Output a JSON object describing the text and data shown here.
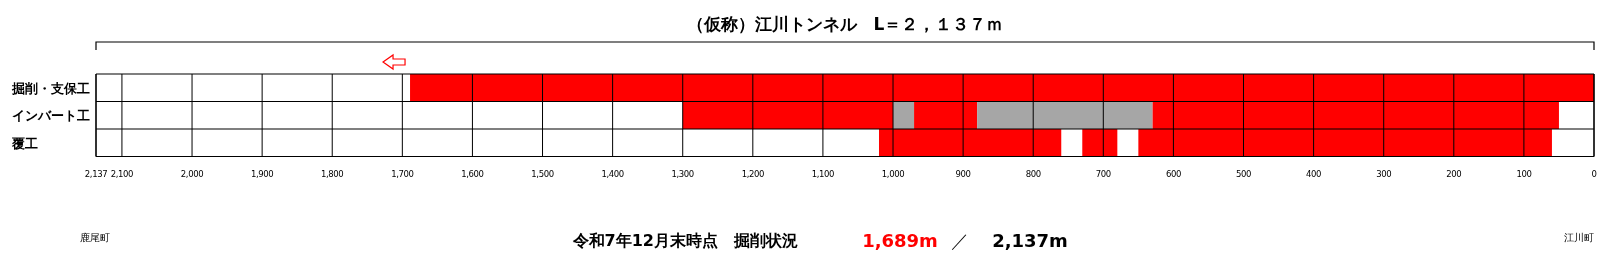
{
  "chart_data": {
    "type": "bar",
    "orientation": "horizontal",
    "title": "（仮称）江川トンネル　L＝２，１３７ｍ",
    "categories": [
      "掘削・支保工",
      "インバート工",
      "覆工"
    ],
    "series": [
      {
        "color": "#ff0000",
        "base": [
          0,
          50,
          60
        ],
        "values": [
          1689,
          580,
          590
        ]
      },
      {
        "color": "#ff0000",
        "base": [
          null,
          880,
          680
        ],
        "values": [
          null,
          90,
          50
        ]
      },
      {
        "color": "#ff0000",
        "base": [
          null,
          1000,
          760
        ],
        "values": [
          null,
          300,
          260
        ]
      },
      {
        "color": "#a6a6a6",
        "base": [
          null,
          630,
          null
        ],
        "values": [
          null,
          250,
          null
        ]
      },
      {
        "color": "#a6a6a6",
        "base": [
          null,
          970,
          null
        ],
        "values": [
          null,
          30,
          null
        ]
      }
    ],
    "xlim": [
      2137,
      0
    ],
    "xticks": [
      {
        "value": 2137,
        "label": "2,137"
      },
      {
        "value": 2100,
        "label": "2,100"
      },
      {
        "value": 2000,
        "label": "2,000"
      },
      {
        "value": 1900,
        "label": "1,900"
      },
      {
        "value": 1800,
        "label": "1,800"
      },
      {
        "value": 1700,
        "label": "1,700"
      },
      {
        "value": 1600,
        "label": "1,600"
      },
      {
        "value": 1500,
        "label": "1,500"
      },
      {
        "value": 1400,
        "label": "1,400"
      },
      {
        "value": 1300,
        "label": "1,300"
      },
      {
        "value": 1200,
        "label": "1,200"
      },
      {
        "value": 1100,
        "label": "1,100"
      },
      {
        "value": 1000,
        "label": "1,000"
      },
      900,
      800,
      700,
      600,
      500,
      400,
      300,
      200,
      100,
      0
    ],
    "grid": "x",
    "annotations": [
      "鹿尾町",
      "江川町",
      "令和7年12月末時点　掘削状況",
      "1,689m",
      "／",
      "2,137m"
    ]
  }
}
